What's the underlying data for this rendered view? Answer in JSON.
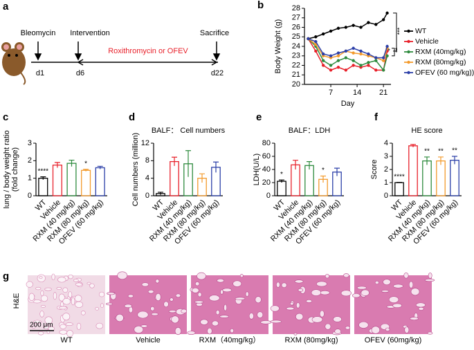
{
  "timeline": {
    "panel": "a",
    "start": "Bleomycin",
    "intervention": "Intervention",
    "end": "Sacrifice",
    "days": [
      "d1",
      "d6",
      "d22"
    ],
    "treatment": "Roxithromycin or OFEV"
  },
  "chart_data": [
    {
      "type": "line",
      "panel": "b",
      "xlabel": "Day",
      "ylabel": "Body Weight (g)",
      "x": [
        1,
        3,
        5,
        7,
        9,
        11,
        13,
        15,
        17,
        19,
        21,
        22
      ],
      "xlim": [
        0,
        23
      ],
      "xticks": [
        7,
        14,
        21
      ],
      "ylim": [
        20,
        28
      ],
      "yticks": [
        20,
        21,
        22,
        23,
        24,
        25,
        26,
        27,
        28
      ],
      "series": [
        {
          "name": "WT",
          "color": "#000000",
          "values": [
            24.8,
            25.0,
            25.3,
            25.6,
            25.9,
            26.0,
            26.2,
            26.0,
            26.5,
            26.3,
            26.8,
            27.5
          ]
        },
        {
          "name": "Vehicle",
          "color": "#e8202a",
          "values": [
            24.8,
            23.5,
            22.0,
            21.5,
            21.8,
            21.5,
            22.0,
            21.8,
            22.0,
            21.5,
            21.5,
            23.5
          ]
        },
        {
          "name": "RXM  (40mg/kg)",
          "color": "#2e8b3e",
          "values": [
            24.8,
            24.0,
            22.5,
            22.0,
            22.5,
            22.8,
            22.5,
            22.0,
            22.3,
            22.5,
            21.5,
            23.0
          ]
        },
        {
          "name": "RXM  (80mg/kg)",
          "color": "#f39a2b",
          "values": [
            24.8,
            24.2,
            23.0,
            22.8,
            23.0,
            23.5,
            23.3,
            23.2,
            23.0,
            22.8,
            22.5,
            23.8
          ]
        },
        {
          "name": "OFEV (60 mg/kg))",
          "color": "#2b3fa8",
          "values": [
            24.8,
            24.5,
            23.2,
            23.0,
            23.3,
            23.5,
            23.8,
            23.5,
            23.2,
            22.8,
            22.8,
            24.0
          ]
        }
      ],
      "annotations": [
        "***",
        "**",
        "*"
      ]
    },
    {
      "type": "bar",
      "panel": "c",
      "ylabel": [
        "lung / body weight ratio",
        "(fold change)"
      ],
      "categories": [
        "WT",
        "Vehicle",
        "RXM (40 mg/kg)",
        "RXM (80 mg/kg)",
        "OFEV (60 mg/kg)"
      ],
      "colors": [
        "#000000",
        "#e8202a",
        "#2e8b3e",
        "#f39a2b",
        "#2b3fa8"
      ],
      "values": [
        1.0,
        1.75,
        1.85,
        1.45,
        1.6
      ],
      "errors": [
        0.08,
        0.15,
        0.18,
        0.06,
        0.08
      ],
      "significance": [
        "****",
        null,
        null,
        "*",
        null
      ],
      "ylim": [
        0,
        3
      ],
      "yticks": [
        0,
        1,
        2,
        3
      ]
    },
    {
      "type": "bar",
      "panel": "d",
      "title": "BALF： Cell numbers",
      "ylabel": [
        "Cell numbers (million)"
      ],
      "categories": [
        "WT",
        "Vehicle",
        "RXM (40 mg/kg)",
        "RXM (80 mg/kg)",
        "OFEV (60 mg/kg)"
      ],
      "colors": [
        "#000000",
        "#e8202a",
        "#2e8b3e",
        "#f39a2b",
        "#2b3fa8"
      ],
      "values": [
        0.5,
        7.8,
        7.3,
        4.0,
        6.5
      ],
      "errors": [
        0.3,
        1.0,
        3.0,
        1.0,
        1.2
      ],
      "ylim": [
        0,
        12
      ],
      "yticks": [
        0,
        4,
        8,
        12
      ]
    },
    {
      "type": "bar",
      "panel": "e",
      "title": "BALF：LDH",
      "ylabel": [
        "LDH(U/L)"
      ],
      "categories": [
        "WT",
        "Vehicle",
        "RXM (40 mg/kg)",
        "RXM (80 mg/kg)",
        "OFEV (60 mg/kg)"
      ],
      "colors": [
        "#000000",
        "#e8202a",
        "#2e8b3e",
        "#f39a2b",
        "#2b3fa8"
      ],
      "values": [
        22,
        47,
        46,
        25,
        36
      ],
      "errors": [
        2,
        7,
        6,
        5,
        6
      ],
      "significance": [
        "*",
        null,
        null,
        "*",
        null
      ],
      "ylim": [
        0,
        80
      ],
      "yticks": [
        0,
        20,
        40,
        60,
        80
      ]
    },
    {
      "type": "bar",
      "panel": "f",
      "title": "HE score",
      "ylabel": [
        "Score"
      ],
      "categories": [
        "WT",
        "Vehicle",
        "RXM (40 mg/kg)",
        "RXM (80 mg/kg)",
        "OFEV (60 mg/kg)"
      ],
      "colors": [
        "#000000",
        "#e8202a",
        "#2e8b3e",
        "#f39a2b",
        "#2b3fa8"
      ],
      "values": [
        1.0,
        3.8,
        2.65,
        2.65,
        2.7
      ],
      "errors": [
        0.02,
        0.1,
        0.3,
        0.3,
        0.3
      ],
      "significance": [
        "****",
        null,
        "**",
        "**",
        "**"
      ],
      "ylim": [
        0,
        4
      ],
      "yticks": [
        0,
        1,
        2,
        3,
        4
      ]
    }
  ],
  "histology": {
    "panel": "g",
    "stain": "H&E",
    "scale_bar": "200 μm",
    "captions": [
      "WT",
      "Vehicle",
      "RXM（40mg/kg）",
      "RXM (80mg/kg)",
      "OFEV (60mg/kg)"
    ]
  }
}
